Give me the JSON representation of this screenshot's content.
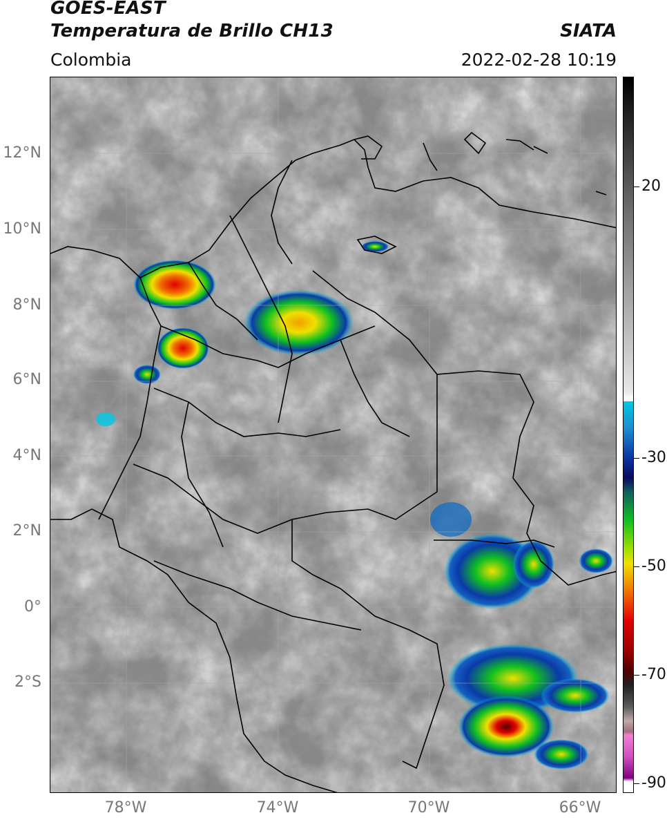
{
  "header": {
    "satellite": "GOES-EAST",
    "product": "Temperatura de Brillo CH13",
    "region": "Colombia",
    "agency": "SIATA",
    "datetime": "2022-02-28 10:19"
  },
  "axes": {
    "lat_labels": [
      "12°N",
      "10°N",
      "8°N",
      "6°N",
      "4°N",
      "2°N",
      "0°",
      "2°S"
    ],
    "lon_labels": [
      "78°W",
      "74°W",
      "70°W",
      "66°W"
    ]
  },
  "colorbar": {
    "tick_labels": [
      "20",
      "-30",
      "-50",
      "-70",
      "-90"
    ],
    "colors": {
      "white": "#ffffff",
      "cyan": "#00c8e6",
      "blue": "#0a3aa8",
      "navy": "#0a0a60",
      "green": "#10c020",
      "yellow": "#f0e000",
      "orange": "#f07000",
      "red": "#e00000",
      "darkred": "#500000",
      "magenta": "#d050c0"
    }
  },
  "chart_data": {
    "type": "heatmap",
    "title": "GOES-EAST Temperatura de Brillo CH13",
    "subtitle": "Colombia",
    "xlabel": "",
    "ylabel": "",
    "lat_ticks": [
      12,
      10,
      8,
      6,
      4,
      2,
      0,
      -2
    ],
    "lon_ticks": [
      -78,
      -74,
      -70,
      -66
    ],
    "xlim": [
      -80,
      -65
    ],
    "ylim": [
      -5,
      14
    ],
    "colorbar_ticks": [
      20,
      -30,
      -50,
      -70,
      -90
    ],
    "grid": true
  }
}
